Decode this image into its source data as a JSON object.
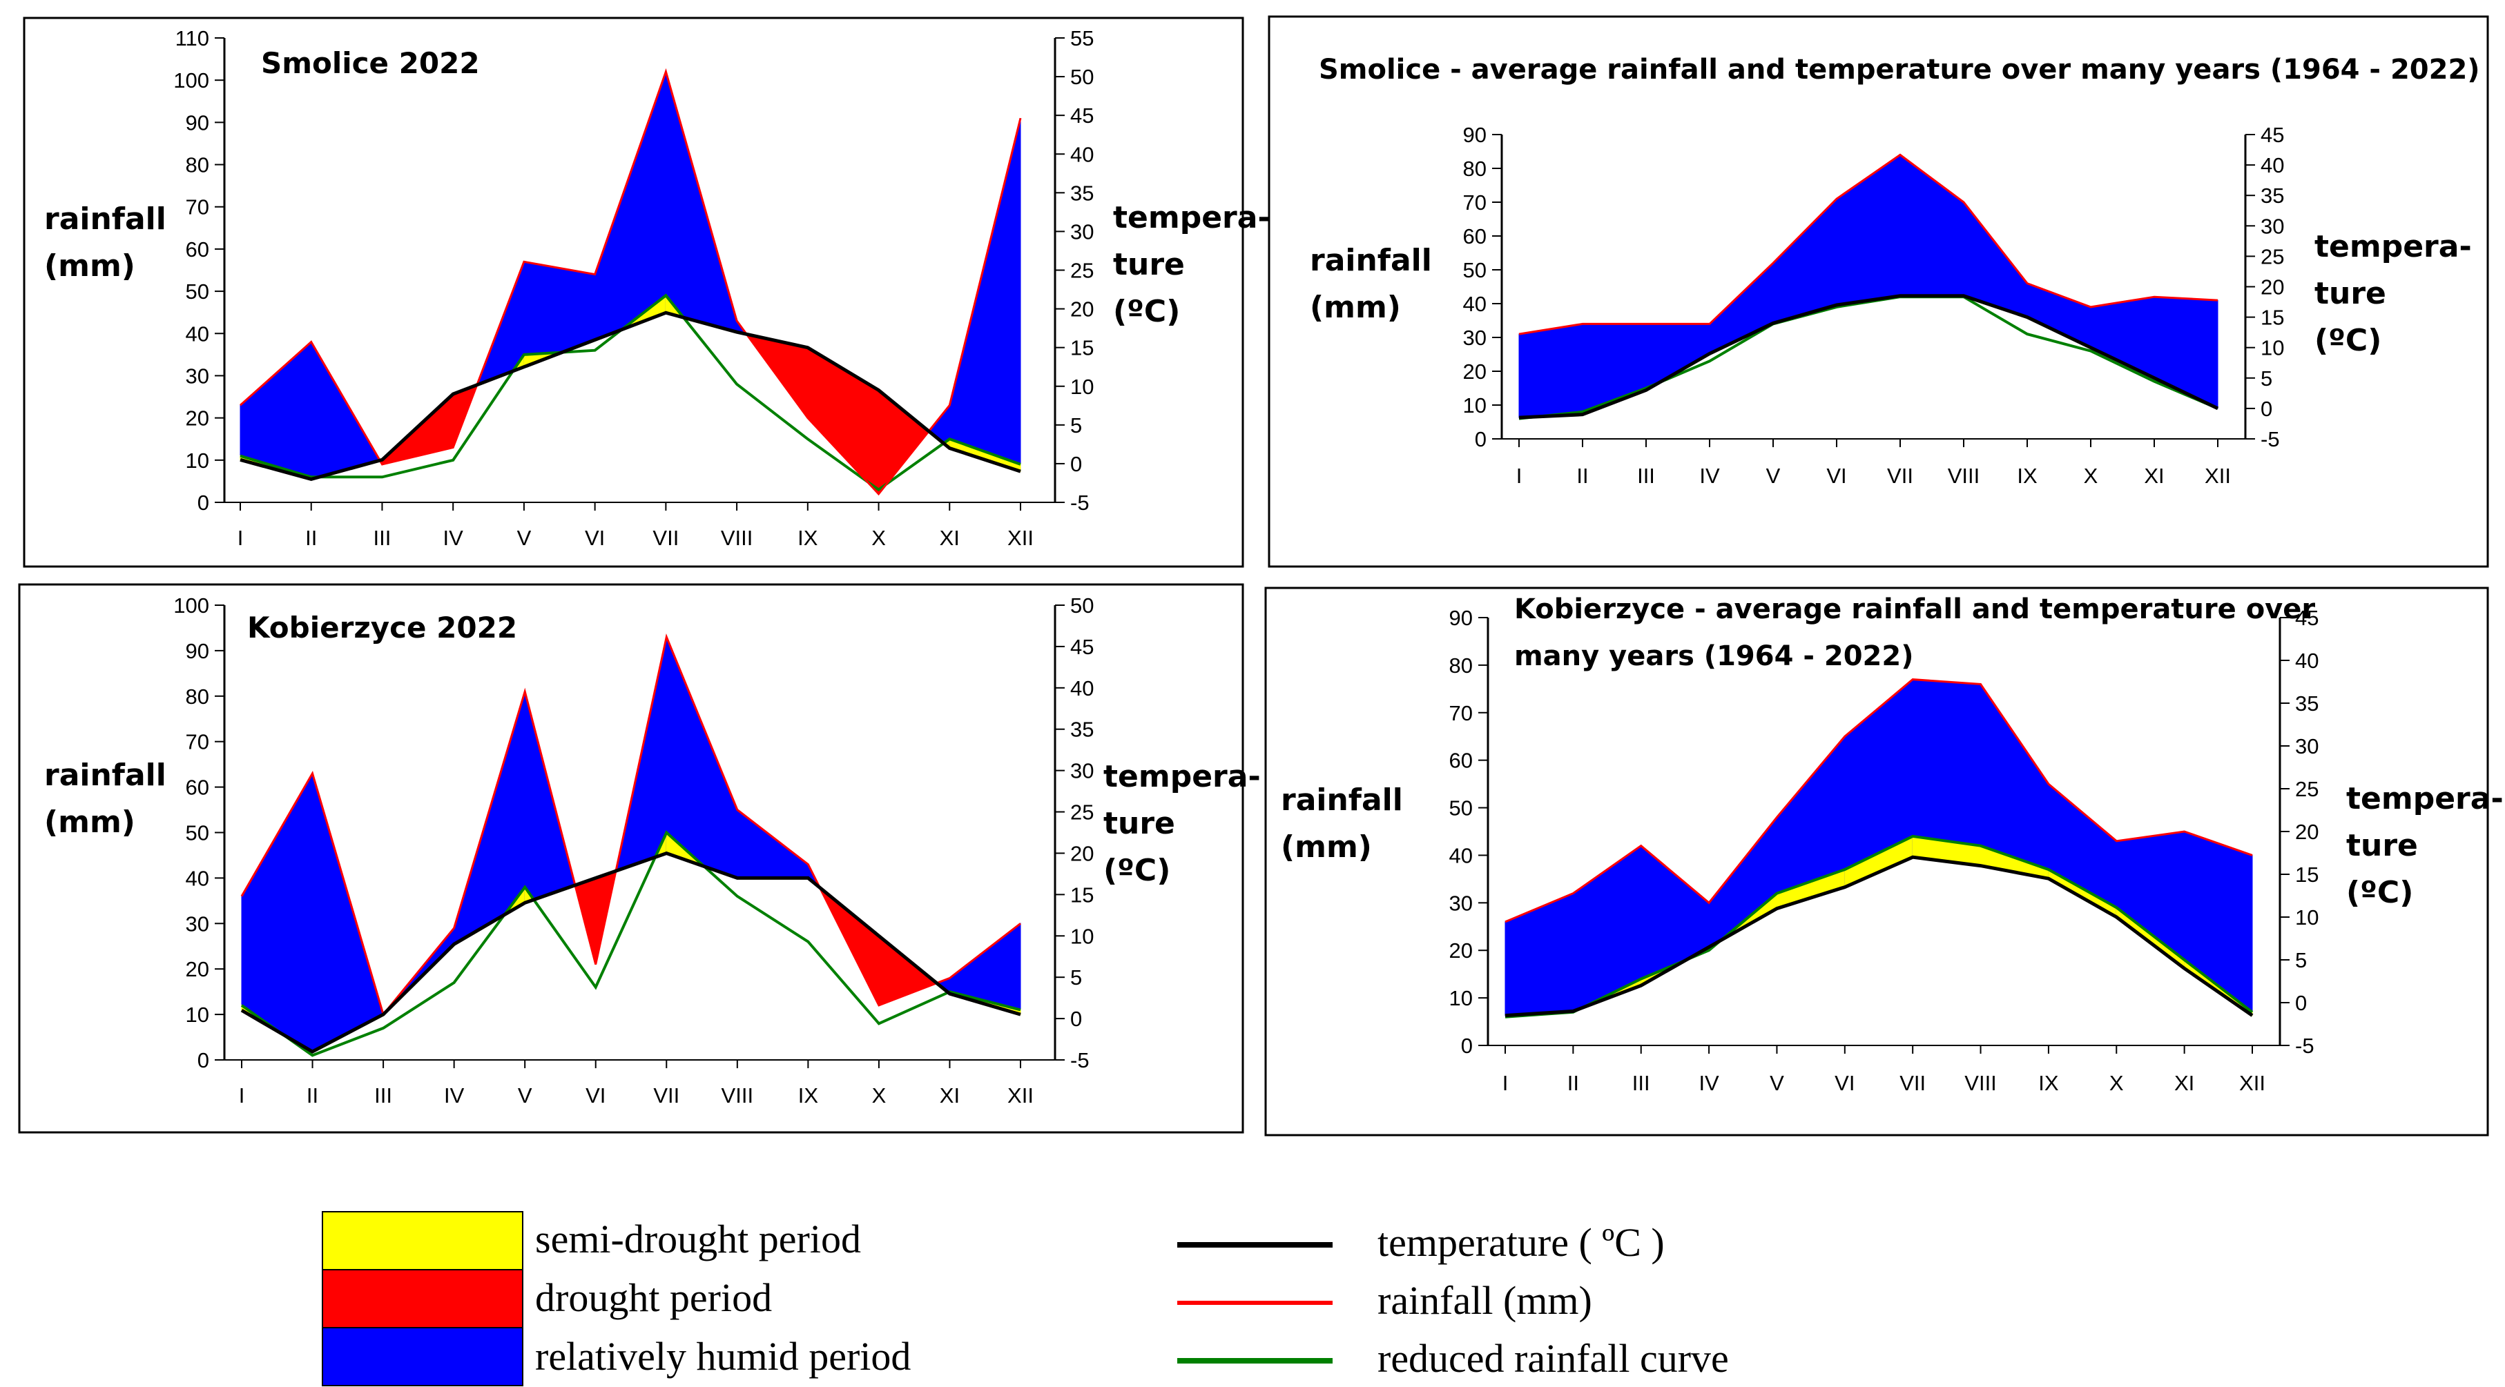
{
  "colors": {
    "semi_drought": "#ffff00",
    "drought": "#ff0000",
    "humid": "#0000ff",
    "temperature_line": "#000000",
    "rainfall_line": "#ff0000",
    "reduced_line": "#008000"
  },
  "chart_data": [
    {
      "type": "area",
      "title": "Smolice 2022",
      "categories": [
        "I",
        "II",
        "III",
        "IV",
        "V",
        "VI",
        "VII",
        "VIII",
        "IX",
        "X",
        "XI",
        "XII"
      ],
      "ylabel_left": [
        "rainfall",
        "(mm)"
      ],
      "ylabel_right": [
        "tempera-",
        "ture",
        "(ºC)"
      ],
      "ylim": [
        0,
        110
      ],
      "y2lim": [
        -5,
        55
      ],
      "yticks": [
        0,
        10,
        20,
        30,
        40,
        50,
        60,
        70,
        80,
        90,
        100,
        110
      ],
      "y2ticks": [
        -5,
        0,
        5,
        10,
        15,
        20,
        25,
        30,
        35,
        40,
        45,
        50,
        55
      ],
      "series": [
        {
          "name": "rainfall (mm)",
          "values": [
            23,
            38,
            9,
            13,
            57,
            54,
            102,
            43,
            20,
            2,
            23,
            91
          ]
        },
        {
          "name": "temperature (°C)",
          "values": [
            0.5,
            -2,
            0.5,
            9,
            12.5,
            16,
            19.5,
            17,
            15,
            9.5,
            2,
            -1
          ]
        },
        {
          "name": "reduced rainfall curve",
          "values": [
            11,
            6,
            6,
            10,
            35,
            36,
            49,
            28,
            15,
            3,
            15,
            9
          ]
        }
      ]
    },
    {
      "type": "area",
      "title": "Smolice - average rainfall and temperature over many years (1964 - 2022)",
      "categories": [
        "I",
        "II",
        "III",
        "IV",
        "V",
        "VI",
        "VII",
        "VIII",
        "IX",
        "X",
        "XI",
        "XII"
      ],
      "ylabel_left": [
        "rainfall",
        "(mm)"
      ],
      "ylabel_right": [
        "tempera-",
        "ture",
        "(ºC)"
      ],
      "ylim": [
        0,
        90
      ],
      "y2lim": [
        -5,
        45
      ],
      "yticks": [
        0,
        10,
        20,
        30,
        40,
        50,
        60,
        70,
        80,
        90
      ],
      "y2ticks": [
        -5,
        0,
        5,
        10,
        15,
        20,
        25,
        30,
        35,
        40,
        45
      ],
      "series": [
        {
          "name": "rainfall (mm)",
          "values": [
            31,
            34,
            34,
            34,
            52,
            71,
            84,
            70,
            46,
            39,
            42,
            41
          ]
        },
        {
          "name": "temperature (°C)",
          "values": [
            -1.5,
            -1,
            3,
            9,
            14,
            17,
            18.5,
            18.5,
            15,
            10,
            5,
            0
          ]
        },
        {
          "name": "reduced rainfall curve",
          "values": [
            6,
            8,
            15,
            23,
            34,
            39,
            42,
            42,
            31,
            26,
            17,
            9
          ]
        }
      ]
    },
    {
      "type": "area",
      "title": "Kobierzyce 2022",
      "categories": [
        "I",
        "II",
        "III",
        "IV",
        "V",
        "VI",
        "VII",
        "VIII",
        "IX",
        "X",
        "XI",
        "XII"
      ],
      "ylabel_left": [
        "rainfall",
        "(mm)"
      ],
      "ylabel_right": [
        "tempera-",
        "ture",
        "(ºC)"
      ],
      "ylim": [
        0,
        100
      ],
      "y2lim": [
        -5,
        50
      ],
      "yticks": [
        0,
        10,
        20,
        30,
        40,
        50,
        60,
        70,
        80,
        90,
        100
      ],
      "y2ticks": [
        -5,
        0,
        5,
        10,
        15,
        20,
        25,
        30,
        35,
        40,
        45,
        50
      ],
      "series": [
        {
          "name": "rainfall (mm)",
          "values": [
            36,
            63,
            10,
            29,
            81,
            21,
            93,
            55,
            43,
            12,
            18,
            30
          ]
        },
        {
          "name": "temperature (°C)",
          "values": [
            1,
            -4,
            0.5,
            9,
            14,
            17,
            20,
            17,
            17,
            10,
            3,
            0.5
          ]
        },
        {
          "name": "reduced rainfall curve",
          "values": [
            12,
            1,
            7,
            17,
            38,
            16,
            50,
            36,
            26,
            8,
            15,
            11
          ]
        }
      ]
    },
    {
      "type": "area",
      "title": "Kobierzyce - average rainfall and temperature over many years (1964 - 2022)",
      "title_lines": [
        "Kobierzyce - average rainfall and temperature over",
        "many years (1964 - 2022)"
      ],
      "categories": [
        "I",
        "II",
        "III",
        "IV",
        "V",
        "VI",
        "VII",
        "VIII",
        "IX",
        "X",
        "XI",
        "XII"
      ],
      "ylabel_left": [
        "rainfall",
        "(mm)"
      ],
      "ylabel_right": [
        "tempera-",
        "ture",
        "(ºC)"
      ],
      "ylim": [
        0,
        90
      ],
      "y2lim": [
        -5,
        45
      ],
      "yticks": [
        0,
        10,
        20,
        30,
        40,
        50,
        60,
        70,
        80,
        90
      ],
      "y2ticks": [
        -5,
        0,
        5,
        10,
        15,
        20,
        25,
        30,
        35,
        40,
        45
      ],
      "series": [
        {
          "name": "rainfall (mm)",
          "values": [
            26,
            32,
            42,
            30,
            48,
            65,
            77,
            76,
            55,
            43,
            45,
            40
          ]
        },
        {
          "name": "temperature (°C)",
          "values": [
            -1.5,
            -1,
            2,
            6.5,
            11,
            13.5,
            17,
            16,
            14.5,
            10,
            4,
            -1.5
          ]
        },
        {
          "name": "reduced rainfall curve",
          "values": [
            6,
            7,
            14,
            20,
            32,
            37,
            44,
            42,
            37,
            29,
            18,
            7
          ]
        }
      ]
    }
  ],
  "legend": {
    "patches": [
      {
        "label": "semi-drought period",
        "color": "#ffff00"
      },
      {
        "label": "drought period",
        "color": "#ff0000"
      },
      {
        "label": "relatively humid period",
        "color": "#0000ff"
      }
    ],
    "lines": [
      {
        "label": "temperature ( ºC )",
        "color": "#000000"
      },
      {
        "label": "rainfall (mm)",
        "color": "#ff0000"
      },
      {
        "label": "reduced rainfall curve",
        "color": "#008000"
      }
    ]
  }
}
